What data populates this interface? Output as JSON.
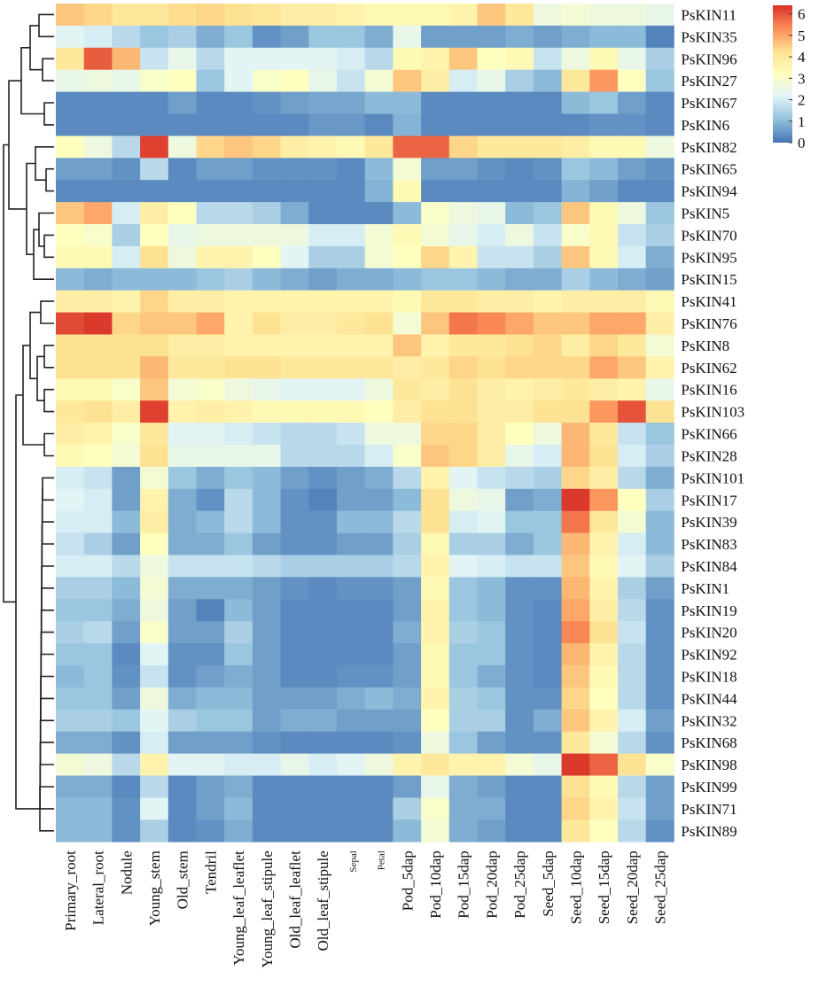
{
  "chart_data": {
    "type": "heatmap",
    "title": "",
    "colorscale": [
      "#4575b4",
      "#91bfdb",
      "#e0f3f8",
      "#ffffbf",
      "#fee090",
      "#fc8d59",
      "#d73027"
    ],
    "vmin": 0,
    "vmax": 6.4,
    "colorbar_ticks": [
      "0",
      "1",
      "2",
      "3",
      "4",
      "5",
      "6"
    ],
    "columns": [
      "Primary_root",
      "Lateral_root",
      "Nodule",
      "Young_stem",
      "Old_stem",
      "Tendril",
      "Young_leaf_leaflet",
      "Young_leaf_stipule",
      "Old_leaf_leaflet",
      "Old_leaf_stipule",
      "Sepal",
      "Petal",
      "Pod_5dap",
      "Pod_10dap",
      "Pod_15dap",
      "Pod_20dap",
      "Pod_25dap",
      "Seed_5dap",
      "Seed_10dap",
      "Seed_15dap",
      "Seed_20dap",
      "Seed_25dap"
    ],
    "rows": [
      "PsKIN11",
      "PsKIN35",
      "PsKIN96",
      "PsKIN27",
      "PsKIN67",
      "PsKIN6",
      "PsKIN82",
      "PsKIN65",
      "PsKIN94",
      "PsKIN5",
      "PsKIN70",
      "PsKIN95",
      "PsKIN15",
      "PsKIN41",
      "PsKIN76",
      "PsKIN8",
      "PsKIN62",
      "PsKIN16",
      "PsKIN103",
      "PsKIN66",
      "PsKIN28",
      "PsKIN101",
      "PsKIN17",
      "PsKIN39",
      "PsKIN83",
      "PsKIN84",
      "PsKIN1",
      "PsKIN19",
      "PsKIN20",
      "PsKIN92",
      "PsKIN18",
      "PsKIN44",
      "PsKIN32",
      "PsKIN68",
      "PsKIN98",
      "PsKIN99",
      "PsKIN71",
      "PsKIN89"
    ],
    "values": [
      [
        4.6,
        4.4,
        4.0,
        4.0,
        4.3,
        4.4,
        4.2,
        4.0,
        3.8,
        3.8,
        3.6,
        3.4,
        3.4,
        3.4,
        3.6,
        4.6,
        4.0,
        2.6,
        2.8,
        2.6,
        2.6,
        2.4
      ],
      [
        2.2,
        2.0,
        1.6,
        1.2,
        1.4,
        0.8,
        1.2,
        0.4,
        0.6,
        1.2,
        1.2,
        0.8,
        2.4,
        0.6,
        0.6,
        0.6,
        0.8,
        0.6,
        0.8,
        1.0,
        1.0,
        0.2
      ],
      [
        4.0,
        5.9,
        4.8,
        1.8,
        2.4,
        1.6,
        2.2,
        2.2,
        2.2,
        2.2,
        2.0,
        1.6,
        3.4,
        3.6,
        4.6,
        3.2,
        3.4,
        1.8,
        2.6,
        3.4,
        2.4,
        1.4
      ],
      [
        2.4,
        2.6,
        2.4,
        3.0,
        3.2,
        1.2,
        2.2,
        3.0,
        3.2,
        2.4,
        1.8,
        2.8,
        4.6,
        3.8,
        2.0,
        2.4,
        1.4,
        1.0,
        4.0,
        5.2,
        3.2,
        1.2
      ],
      [
        0.3,
        0.3,
        0.3,
        0.3,
        0.6,
        0.3,
        0.3,
        0.4,
        0.6,
        0.7,
        0.7,
        1.0,
        1.0,
        0.3,
        0.3,
        0.3,
        0.3,
        0.3,
        1.0,
        1.2,
        0.6,
        0.3
      ],
      [
        0.3,
        0.3,
        0.3,
        0.3,
        0.3,
        0.3,
        0.3,
        0.3,
        0.3,
        0.5,
        0.5,
        0.3,
        0.9,
        0.3,
        0.3,
        0.3,
        0.3,
        0.3,
        0.3,
        0.4,
        0.4,
        0.3
      ],
      [
        3.2,
        2.6,
        1.6,
        6.2,
        2.6,
        4.4,
        4.6,
        4.4,
        3.8,
        3.6,
        3.4,
        4.0,
        5.8,
        5.8,
        4.4,
        4.0,
        4.0,
        4.0,
        3.8,
        3.4,
        3.4,
        2.6
      ],
      [
        0.6,
        0.6,
        0.4,
        1.6,
        0.3,
        0.6,
        0.6,
        0.4,
        0.4,
        0.4,
        0.3,
        1.0,
        2.8,
        0.6,
        0.6,
        0.4,
        0.3,
        0.4,
        1.2,
        1.0,
        0.6,
        0.4
      ],
      [
        0.3,
        0.3,
        0.3,
        0.3,
        0.3,
        0.3,
        0.3,
        0.3,
        0.3,
        0.3,
        0.3,
        0.9,
        3.4,
        0.3,
        0.3,
        0.3,
        0.3,
        0.3,
        0.9,
        0.6,
        0.3,
        0.3
      ],
      [
        4.6,
        5.0,
        2.0,
        3.8,
        3.2,
        1.6,
        1.6,
        1.4,
        0.8,
        0.3,
        0.3,
        0.3,
        1.0,
        3.0,
        2.6,
        2.4,
        1.0,
        1.2,
        4.6,
        3.4,
        2.6,
        1.2
      ],
      [
        3.2,
        3.0,
        1.4,
        3.2,
        2.4,
        2.6,
        2.6,
        2.6,
        2.6,
        2.0,
        2.0,
        2.8,
        3.4,
        2.8,
        2.4,
        2.0,
        2.6,
        1.8,
        3.0,
        3.4,
        1.8,
        1.4
      ],
      [
        3.4,
        3.4,
        2.0,
        4.2,
        2.6,
        3.6,
        3.6,
        3.2,
        2.2,
        1.4,
        1.4,
        2.8,
        3.2,
        4.4,
        3.6,
        1.8,
        1.8,
        1.4,
        4.6,
        3.4,
        2.0,
        0.8
      ],
      [
        1.0,
        0.8,
        1.0,
        1.0,
        1.0,
        1.2,
        1.4,
        1.0,
        0.8,
        0.6,
        0.8,
        0.8,
        1.0,
        1.2,
        1.2,
        1.0,
        0.8,
        0.8,
        1.4,
        1.0,
        0.8,
        0.6
      ],
      [
        3.8,
        3.8,
        3.6,
        4.4,
        3.8,
        3.8,
        3.6,
        3.6,
        3.6,
        3.6,
        3.6,
        3.6,
        3.4,
        4.0,
        4.0,
        3.8,
        3.8,
        3.6,
        3.8,
        3.8,
        3.8,
        3.4
      ],
      [
        6.1,
        6.3,
        4.4,
        4.6,
        4.6,
        5.0,
        3.6,
        4.2,
        3.8,
        3.8,
        4.0,
        4.2,
        2.8,
        4.6,
        5.6,
        5.4,
        5.0,
        4.6,
        4.6,
        5.0,
        5.0,
        3.8
      ],
      [
        4.2,
        4.2,
        4.2,
        4.2,
        3.8,
        3.8,
        3.6,
        3.6,
        3.6,
        3.6,
        3.6,
        3.6,
        4.6,
        3.6,
        4.0,
        4.0,
        4.2,
        4.4,
        3.8,
        4.4,
        4.0,
        2.8
      ],
      [
        4.2,
        4.2,
        4.2,
        4.8,
        4.0,
        4.0,
        4.2,
        4.2,
        4.0,
        4.0,
        4.0,
        4.0,
        3.8,
        4.0,
        4.4,
        4.2,
        4.4,
        4.4,
        4.4,
        5.0,
        4.6,
        3.6
      ],
      [
        3.4,
        3.4,
        3.0,
        4.6,
        2.8,
        3.0,
        2.6,
        2.4,
        2.2,
        2.2,
        2.2,
        2.6,
        4.0,
        3.8,
        4.2,
        3.8,
        3.6,
        3.8,
        4.0,
        3.8,
        3.6,
        2.4
      ],
      [
        4.0,
        4.2,
        3.8,
        6.2,
        3.6,
        3.8,
        3.6,
        3.4,
        3.4,
        3.4,
        3.4,
        3.2,
        3.8,
        4.2,
        4.2,
        3.8,
        3.8,
        4.2,
        4.2,
        5.2,
        6.0,
        4.2
      ],
      [
        3.8,
        3.6,
        3.0,
        4.0,
        2.2,
        2.2,
        2.0,
        1.8,
        1.6,
        1.6,
        1.8,
        2.6,
        2.6,
        4.4,
        4.4,
        3.8,
        3.2,
        2.6,
        4.8,
        4.0,
        1.8,
        1.2
      ],
      [
        3.4,
        3.2,
        2.8,
        4.2,
        2.4,
        2.4,
        2.4,
        2.4,
        1.6,
        1.6,
        1.6,
        2.0,
        3.0,
        4.6,
        4.4,
        3.8,
        2.4,
        2.0,
        4.8,
        4.2,
        2.0,
        1.4
      ],
      [
        2.0,
        1.8,
        0.6,
        2.8,
        1.2,
        0.8,
        1.2,
        1.0,
        0.6,
        0.4,
        0.6,
        0.8,
        1.6,
        3.6,
        2.2,
        1.8,
        1.6,
        1.4,
        4.4,
        3.8,
        1.6,
        0.8
      ],
      [
        2.2,
        2.0,
        0.6,
        3.6,
        0.8,
        0.4,
        1.6,
        1.0,
        0.4,
        0.2,
        0.6,
        0.6,
        1.0,
        4.2,
        2.6,
        2.4,
        0.6,
        0.8,
        6.3,
        5.2,
        3.2,
        1.4
      ],
      [
        2.0,
        2.0,
        1.0,
        3.8,
        0.8,
        1.0,
        1.6,
        1.0,
        0.4,
        0.4,
        1.0,
        1.0,
        1.6,
        4.2,
        2.0,
        2.2,
        1.2,
        1.2,
        5.6,
        4.0,
        2.8,
        1.0
      ],
      [
        1.8,
        1.4,
        0.6,
        3.2,
        0.8,
        0.8,
        1.2,
        0.6,
        0.4,
        0.4,
        0.6,
        0.6,
        1.4,
        3.4,
        1.4,
        1.4,
        0.8,
        1.2,
        4.8,
        3.6,
        2.0,
        1.0
      ],
      [
        2.0,
        2.0,
        1.6,
        2.6,
        1.8,
        1.8,
        1.8,
        1.6,
        1.4,
        1.4,
        1.4,
        1.4,
        1.6,
        3.6,
        2.2,
        2.0,
        1.8,
        1.8,
        4.6,
        3.4,
        2.2,
        1.4
      ],
      [
        1.4,
        1.4,
        1.0,
        2.8,
        0.8,
        0.8,
        0.8,
        0.6,
        0.4,
        0.3,
        0.4,
        0.4,
        0.6,
        3.4,
        1.2,
        1.0,
        0.4,
        0.4,
        4.8,
        3.6,
        1.4,
        0.6
      ],
      [
        1.2,
        1.2,
        0.8,
        2.6,
        0.6,
        0.2,
        1.0,
        0.6,
        0.3,
        0.3,
        0.3,
        0.3,
        0.6,
        3.6,
        1.2,
        1.0,
        0.4,
        0.3,
        5.0,
        3.8,
        1.6,
        0.4
      ],
      [
        1.4,
        1.6,
        0.6,
        3.0,
        0.6,
        0.6,
        1.4,
        0.6,
        0.3,
        0.3,
        0.3,
        0.3,
        0.8,
        3.6,
        1.4,
        1.2,
        0.4,
        0.3,
        5.4,
        4.2,
        1.8,
        0.4
      ],
      [
        1.2,
        1.2,
        0.3,
        2.2,
        0.4,
        0.4,
        1.2,
        0.6,
        0.3,
        0.3,
        0.3,
        0.3,
        0.6,
        3.4,
        1.2,
        1.2,
        0.4,
        0.3,
        4.8,
        3.6,
        1.6,
        0.4
      ],
      [
        1.0,
        1.2,
        0.4,
        1.8,
        0.4,
        0.6,
        0.8,
        0.6,
        0.3,
        0.3,
        0.4,
        0.4,
        0.6,
        3.4,
        1.2,
        0.8,
        0.4,
        0.3,
        4.6,
        3.4,
        1.6,
        0.4
      ],
      [
        1.2,
        1.2,
        0.6,
        2.6,
        0.8,
        1.0,
        1.0,
        0.6,
        0.6,
        0.6,
        0.8,
        1.0,
        0.8,
        3.6,
        1.4,
        1.2,
        0.4,
        0.4,
        4.4,
        3.2,
        1.6,
        0.4
      ],
      [
        1.4,
        1.4,
        1.2,
        2.2,
        1.4,
        1.2,
        1.2,
        0.6,
        0.8,
        0.8,
        0.6,
        0.6,
        0.6,
        3.2,
        1.4,
        1.4,
        0.4,
        0.8,
        4.6,
        3.6,
        2.0,
        0.6
      ],
      [
        0.8,
        0.8,
        0.4,
        2.0,
        0.6,
        0.6,
        0.6,
        0.4,
        0.3,
        0.3,
        0.3,
        0.3,
        0.4,
        2.6,
        1.2,
        0.6,
        0.4,
        0.4,
        4.0,
        2.8,
        1.6,
        0.4
      ],
      [
        2.8,
        2.6,
        1.6,
        3.6,
        2.2,
        2.2,
        2.0,
        2.0,
        2.4,
        2.0,
        2.2,
        2.6,
        3.6,
        4.0,
        3.6,
        3.6,
        2.8,
        2.4,
        6.3,
        5.8,
        4.2,
        3.0
      ],
      [
        0.8,
        0.8,
        0.3,
        1.6,
        0.3,
        0.6,
        0.8,
        0.3,
        0.3,
        0.3,
        0.3,
        0.3,
        0.6,
        2.4,
        0.8,
        0.6,
        0.3,
        0.3,
        4.2,
        3.4,
        1.6,
        0.6
      ],
      [
        1.0,
        1.0,
        0.4,
        2.2,
        0.3,
        0.6,
        1.0,
        0.3,
        0.3,
        0.3,
        0.3,
        0.3,
        1.4,
        3.0,
        0.8,
        0.8,
        0.3,
        0.3,
        4.4,
        3.6,
        1.8,
        0.6
      ],
      [
        1.0,
        1.0,
        0.4,
        1.4,
        0.3,
        0.4,
        0.8,
        0.3,
        0.3,
        0.3,
        0.3,
        0.3,
        1.0,
        2.8,
        0.8,
        0.6,
        0.3,
        0.3,
        4.0,
        3.2,
        1.6,
        0.4
      ]
    ]
  }
}
